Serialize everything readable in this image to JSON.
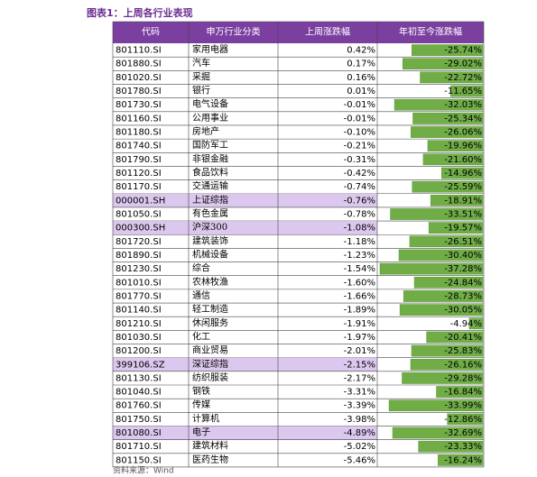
{
  "header": {
    "title": "图表1：上周各行业表现"
  },
  "table": {
    "columns": [
      "代码",
      "申万行业分类",
      "上周涨跌幅",
      "年初至今涨跌幅"
    ],
    "rows": [
      {
        "code": "801110.SI",
        "name": "家用电器",
        "weekly": {
          "value": 0.42,
          "label": "0.42%"
        },
        "ytd": {
          "value": -25.74,
          "label": "-25.74%"
        }
      },
      {
        "code": "801880.SI",
        "name": "汽车",
        "weekly": {
          "value": 0.17,
          "label": "0.17%"
        },
        "ytd": {
          "value": -29.02,
          "label": "-29.02%"
        }
      },
      {
        "code": "801020.SI",
        "name": "采掘",
        "weekly": {
          "value": 0.16,
          "label": "0.16%"
        },
        "ytd": {
          "value": -22.72,
          "label": "-22.72%"
        }
      },
      {
        "code": "801780.SI",
        "name": "银行",
        "weekly": {
          "value": 0.01,
          "label": "0.01%"
        },
        "ytd": {
          "value": -11.65,
          "label": "-11.65%"
        }
      },
      {
        "code": "801730.SI",
        "name": "电气设备",
        "weekly": {
          "value": -0.01,
          "label": "-0.01%"
        },
        "ytd": {
          "value": -32.03,
          "label": "-32.03%"
        }
      },
      {
        "code": "801160.SI",
        "name": "公用事业",
        "weekly": {
          "value": -0.01,
          "label": "-0.01%"
        },
        "ytd": {
          "value": -25.34,
          "label": "-25.34%"
        }
      },
      {
        "code": "801180.SI",
        "name": "房地产",
        "weekly": {
          "value": -0.1,
          "label": "-0.10%"
        },
        "ytd": {
          "value": -26.06,
          "label": "-26.06%"
        }
      },
      {
        "code": "801740.SI",
        "name": "国防军工",
        "weekly": {
          "value": -0.21,
          "label": "-0.21%"
        },
        "ytd": {
          "value": -19.96,
          "label": "-19.96%"
        }
      },
      {
        "code": "801790.SI",
        "name": "非银金融",
        "weekly": {
          "value": -0.31,
          "label": "-0.31%"
        },
        "ytd": {
          "value": -21.6,
          "label": "-21.60%"
        }
      },
      {
        "code": "801120.SI",
        "name": "食品饮料",
        "weekly": {
          "value": -0.42,
          "label": "-0.42%"
        },
        "ytd": {
          "value": -14.96,
          "label": "-14.96%"
        }
      },
      {
        "code": "801170.SI",
        "name": "交通运输",
        "weekly": {
          "value": -0.74,
          "label": "-0.74%"
        },
        "ytd": {
          "value": -25.59,
          "label": "-25.59%"
        }
      },
      {
        "code": "000001.SH",
        "name": "上证综指",
        "weekly": {
          "value": -0.76,
          "label": "-0.76%"
        },
        "ytd": {
          "value": -18.91,
          "label": "-18.91%"
        },
        "highlight": true
      },
      {
        "code": "801050.SI",
        "name": "有色金属",
        "weekly": {
          "value": -0.78,
          "label": "-0.78%"
        },
        "ytd": {
          "value": -33.51,
          "label": "-33.51%"
        }
      },
      {
        "code": "000300.SH",
        "name": "沪深300",
        "weekly": {
          "value": -1.08,
          "label": "-1.08%"
        },
        "ytd": {
          "value": -19.57,
          "label": "-19.57%"
        },
        "highlight": true
      },
      {
        "code": "801720.SI",
        "name": "建筑装饰",
        "weekly": {
          "value": -1.18,
          "label": "-1.18%"
        },
        "ytd": {
          "value": -26.51,
          "label": "-26.51%"
        }
      },
      {
        "code": "801890.SI",
        "name": "机械设备",
        "weekly": {
          "value": -1.23,
          "label": "-1.23%"
        },
        "ytd": {
          "value": -30.4,
          "label": "-30.40%"
        }
      },
      {
        "code": "801230.SI",
        "name": "综合",
        "weekly": {
          "value": -1.54,
          "label": "-1.54%"
        },
        "ytd": {
          "value": -37.28,
          "label": "-37.28%"
        }
      },
      {
        "code": "801010.SI",
        "name": "农林牧渔",
        "weekly": {
          "value": -1.6,
          "label": "-1.60%"
        },
        "ytd": {
          "value": -24.84,
          "label": "-24.84%"
        }
      },
      {
        "code": "801770.SI",
        "name": "通信",
        "weekly": {
          "value": -1.66,
          "label": "-1.66%"
        },
        "ytd": {
          "value": -28.73,
          "label": "-28.73%"
        }
      },
      {
        "code": "801140.SI",
        "name": "轻工制造",
        "weekly": {
          "value": -1.89,
          "label": "-1.89%"
        },
        "ytd": {
          "value": -30.05,
          "label": "-30.05%"
        }
      },
      {
        "code": "801210.SI",
        "name": "休闲服务",
        "weekly": {
          "value": -1.91,
          "label": "-1.91%"
        },
        "ytd": {
          "value": -4.94,
          "label": "-4.94%"
        }
      },
      {
        "code": "801030.SI",
        "name": "化工",
        "weekly": {
          "value": -1.97,
          "label": "-1.97%"
        },
        "ytd": {
          "value": -20.41,
          "label": "-20.41%"
        }
      },
      {
        "code": "801200.SI",
        "name": "商业贸易",
        "weekly": {
          "value": -2.01,
          "label": "-2.01%"
        },
        "ytd": {
          "value": -25.83,
          "label": "-25.83%"
        }
      },
      {
        "code": "399106.SZ",
        "name": "深证综指",
        "weekly": {
          "value": -2.15,
          "label": "-2.15%"
        },
        "ytd": {
          "value": -26.16,
          "label": "-26.16%"
        },
        "highlight": true
      },
      {
        "code": "801130.SI",
        "name": "纺织服装",
        "weekly": {
          "value": -2.17,
          "label": "-2.17%"
        },
        "ytd": {
          "value": -29.28,
          "label": "-29.28%"
        }
      },
      {
        "code": "801040.SI",
        "name": "钢铁",
        "weekly": {
          "value": -3.31,
          "label": "-3.31%"
        },
        "ytd": {
          "value": -16.84,
          "label": "-16.84%"
        }
      },
      {
        "code": "801760.SI",
        "name": "传媒",
        "weekly": {
          "value": -3.39,
          "label": "-3.39%"
        },
        "ytd": {
          "value": -33.99,
          "label": "-33.99%"
        }
      },
      {
        "code": "801750.SI",
        "name": "计算机",
        "weekly": {
          "value": -3.98,
          "label": "-3.98%"
        },
        "ytd": {
          "value": -12.86,
          "label": "-12.86%"
        }
      },
      {
        "code": "801080.SI",
        "name": "电子",
        "weekly": {
          "value": -4.89,
          "label": "-4.89%"
        },
        "ytd": {
          "value": -32.69,
          "label": "-32.69%"
        },
        "highlight": true
      },
      {
        "code": "801710.SI",
        "name": "建筑材料",
        "weekly": {
          "value": -5.02,
          "label": "-5.02%"
        },
        "ytd": {
          "value": -23.33,
          "label": "-23.33%"
        }
      },
      {
        "code": "801150.SI",
        "name": "医药生物",
        "weekly": {
          "value": -5.46,
          "label": "-5.46%"
        },
        "ytd": {
          "value": -16.24,
          "label": "-16.24%"
        }
      }
    ]
  },
  "footer": {
    "source": "资料来源：Wind"
  }
}
